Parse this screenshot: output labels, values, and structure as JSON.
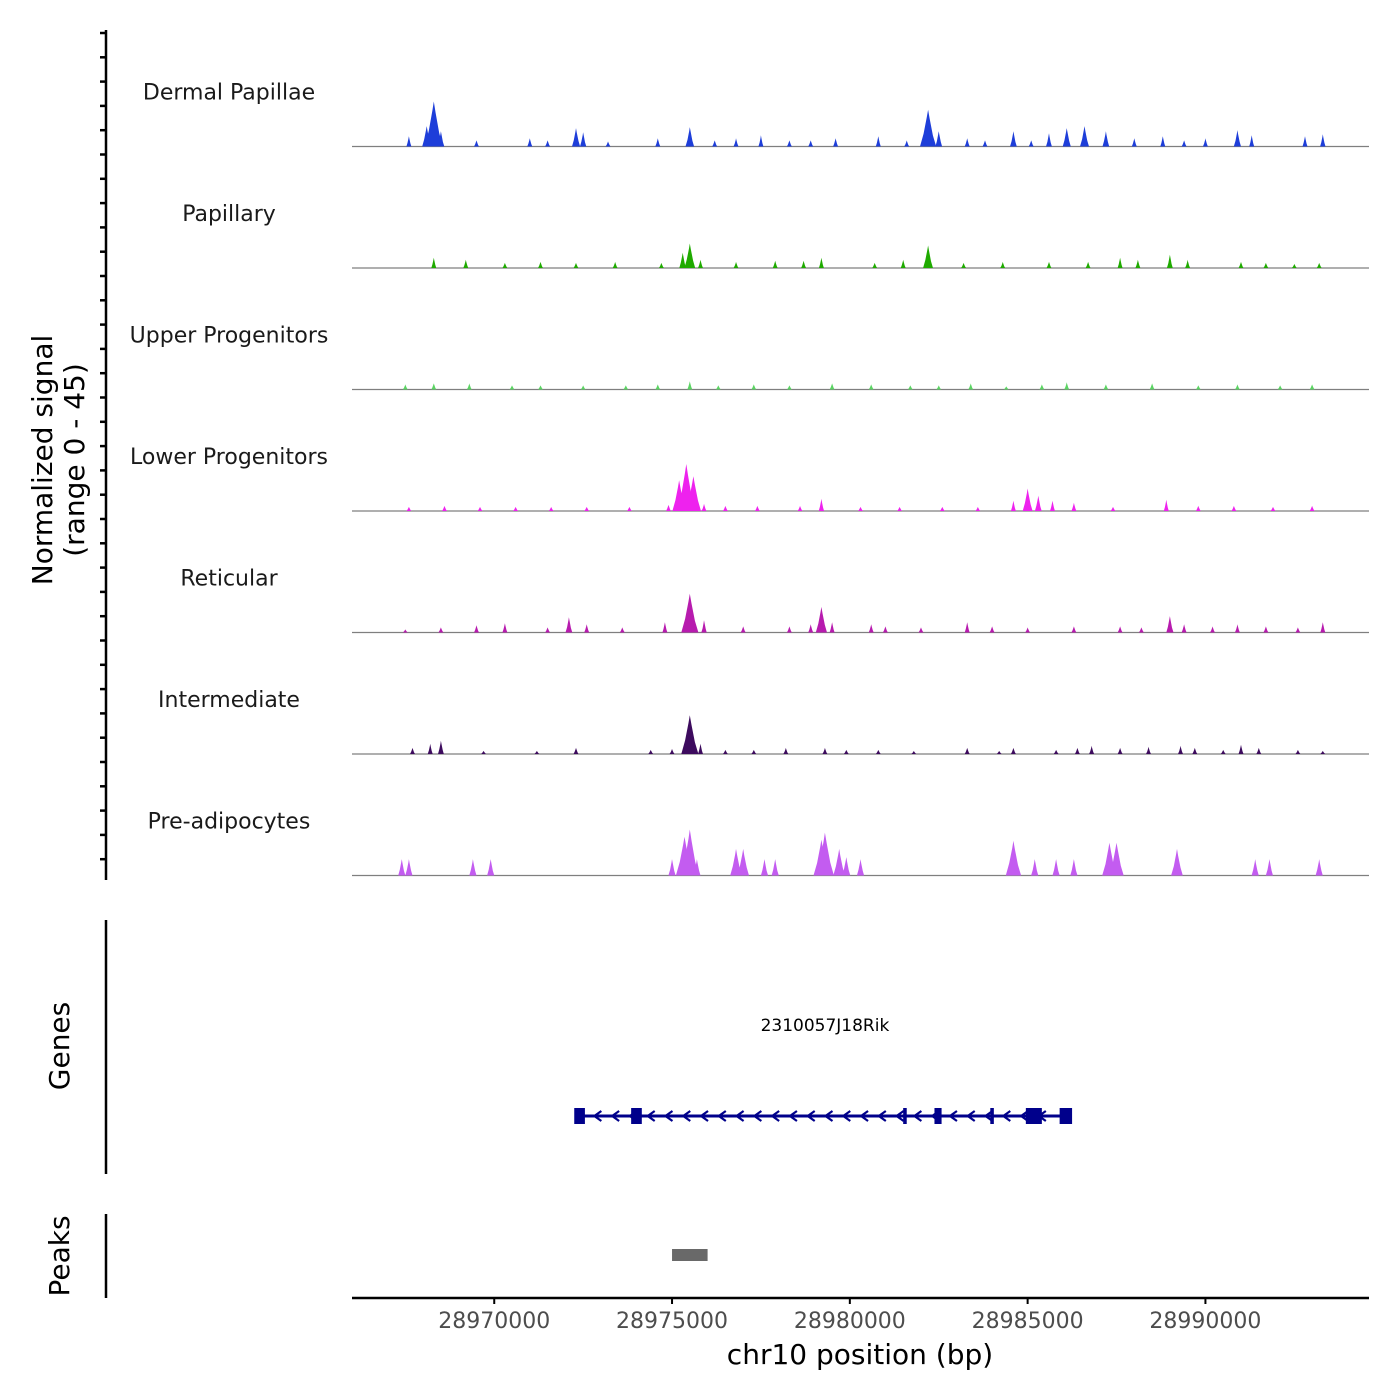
{
  "chart_data": {
    "type": "area",
    "title": "",
    "ylabel_line1": "Normalized signal",
    "ylabel_line2": "(range 0 - 45)",
    "y_range": [
      0,
      45
    ],
    "xlabel": "chr10 position (bp)",
    "x_range": [
      28966000,
      28994600
    ],
    "x_ticks": [
      {
        "value": 28970000,
        "label": "28970000"
      },
      {
        "value": 28975000,
        "label": "28975000"
      },
      {
        "value": 28980000,
        "label": "28980000"
      },
      {
        "value": 28985000,
        "label": "28985000"
      },
      {
        "value": 28990000,
        "label": "28990000"
      }
    ],
    "tracks": [
      {
        "name": "Dermal Papillae",
        "color": "#1E3ED9",
        "peaks": [
          [
            28967600,
            10
          ],
          [
            28968100,
            20
          ],
          [
            28968300,
            44
          ],
          [
            28968500,
            15
          ],
          [
            28969500,
            6
          ],
          [
            28971000,
            8
          ],
          [
            28971500,
            6
          ],
          [
            28972300,
            18
          ],
          [
            28972500,
            14
          ],
          [
            28973200,
            5
          ],
          [
            28974600,
            8
          ],
          [
            28975500,
            19
          ],
          [
            28976200,
            6
          ],
          [
            28976800,
            8
          ],
          [
            28977500,
            11
          ],
          [
            28978300,
            6
          ],
          [
            28978900,
            6
          ],
          [
            28979600,
            8
          ],
          [
            28980800,
            10
          ],
          [
            28981600,
            6
          ],
          [
            28982200,
            36
          ],
          [
            28982500,
            15
          ],
          [
            28983300,
            8
          ],
          [
            28983800,
            6
          ],
          [
            28984600,
            15
          ],
          [
            28985100,
            6
          ],
          [
            28985600,
            13
          ],
          [
            28986100,
            18
          ],
          [
            28986600,
            20
          ],
          [
            28987200,
            15
          ],
          [
            28988000,
            8
          ],
          [
            28988800,
            10
          ],
          [
            28989400,
            6
          ],
          [
            28990000,
            8
          ],
          [
            28990900,
            16
          ],
          [
            28991300,
            11
          ],
          [
            28992800,
            10
          ],
          [
            28993300,
            12
          ]
        ]
      },
      {
        "name": "Papillary",
        "color": "#1FAA00",
        "peaks": [
          [
            28968300,
            10
          ],
          [
            28969200,
            8
          ],
          [
            28970300,
            5
          ],
          [
            28971300,
            6
          ],
          [
            28972300,
            5
          ],
          [
            28973400,
            6
          ],
          [
            28974700,
            5
          ],
          [
            28975300,
            15
          ],
          [
            28975500,
            24
          ],
          [
            28975800,
            8
          ],
          [
            28976800,
            6
          ],
          [
            28977900,
            7
          ],
          [
            28978700,
            7
          ],
          [
            28979200,
            10
          ],
          [
            28980700,
            5
          ],
          [
            28981500,
            8
          ],
          [
            28982200,
            22
          ],
          [
            28983200,
            5
          ],
          [
            28984300,
            6
          ],
          [
            28985600,
            6
          ],
          [
            28986700,
            6
          ],
          [
            28987600,
            10
          ],
          [
            28988100,
            8
          ],
          [
            28989000,
            13
          ],
          [
            28989500,
            8
          ],
          [
            28991000,
            6
          ],
          [
            28991700,
            5
          ],
          [
            28992500,
            4
          ],
          [
            28993200,
            5
          ]
        ]
      },
      {
        "name": "Upper Progenitors",
        "color": "#5BD463",
        "peaks": [
          [
            28967500,
            5
          ],
          [
            28968300,
            6
          ],
          [
            28969300,
            6
          ],
          [
            28970500,
            4
          ],
          [
            28971300,
            4
          ],
          [
            28972500,
            4
          ],
          [
            28973700,
            4
          ],
          [
            28974600,
            5
          ],
          [
            28975500,
            8
          ],
          [
            28976300,
            4
          ],
          [
            28977300,
            5
          ],
          [
            28978300,
            4
          ],
          [
            28979500,
            6
          ],
          [
            28980600,
            5
          ],
          [
            28981700,
            4
          ],
          [
            28982500,
            4
          ],
          [
            28983400,
            6
          ],
          [
            28984400,
            3
          ],
          [
            28985400,
            5
          ],
          [
            28986100,
            7
          ],
          [
            28987200,
            5
          ],
          [
            28988500,
            6
          ],
          [
            28989800,
            4
          ],
          [
            28990900,
            5
          ],
          [
            28992100,
            4
          ],
          [
            28993000,
            5
          ]
        ]
      },
      {
        "name": "Lower Progenitors",
        "color": "#EE22EE",
        "peaks": [
          [
            28967600,
            4
          ],
          [
            28968600,
            5
          ],
          [
            28969600,
            4
          ],
          [
            28970600,
            4
          ],
          [
            28971600,
            4
          ],
          [
            28972600,
            4
          ],
          [
            28973800,
            4
          ],
          [
            28974900,
            6
          ],
          [
            28975200,
            30
          ],
          [
            28975400,
            46
          ],
          [
            28975600,
            34
          ],
          [
            28975900,
            7
          ],
          [
            28976500,
            5
          ],
          [
            28977400,
            5
          ],
          [
            28978600,
            5
          ],
          [
            28979200,
            12
          ],
          [
            28980300,
            4
          ],
          [
            28981400,
            4
          ],
          [
            28982600,
            4
          ],
          [
            28983600,
            4
          ],
          [
            28984600,
            10
          ],
          [
            28985000,
            22
          ],
          [
            28985300,
            15
          ],
          [
            28985700,
            10
          ],
          [
            28986300,
            8
          ],
          [
            28987400,
            4
          ],
          [
            28988900,
            11
          ],
          [
            28989800,
            5
          ],
          [
            28990800,
            5
          ],
          [
            28991900,
            4
          ],
          [
            28993000,
            5
          ]
        ]
      },
      {
        "name": "Reticular",
        "color": "#B71BAE",
        "peaks": [
          [
            28967500,
            3
          ],
          [
            28968500,
            5
          ],
          [
            28969500,
            7
          ],
          [
            28970300,
            9
          ],
          [
            28971500,
            5
          ],
          [
            28972100,
            15
          ],
          [
            28972600,
            8
          ],
          [
            28973600,
            5
          ],
          [
            28974800,
            10
          ],
          [
            28975500,
            38
          ],
          [
            28975900,
            12
          ],
          [
            28977000,
            6
          ],
          [
            28978300,
            6
          ],
          [
            28978900,
            8
          ],
          [
            28979200,
            25
          ],
          [
            28979500,
            10
          ],
          [
            28980600,
            8
          ],
          [
            28981000,
            6
          ],
          [
            28982000,
            5
          ],
          [
            28983300,
            10
          ],
          [
            28984000,
            6
          ],
          [
            28985000,
            5
          ],
          [
            28986300,
            6
          ],
          [
            28987600,
            6
          ],
          [
            28988200,
            5
          ],
          [
            28989000,
            16
          ],
          [
            28989400,
            8
          ],
          [
            28990200,
            6
          ],
          [
            28990900,
            8
          ],
          [
            28991700,
            6
          ],
          [
            28992600,
            5
          ],
          [
            28993300,
            10
          ]
        ]
      },
      {
        "name": "Intermediate",
        "color": "#3D0B5E",
        "peaks": [
          [
            28967700,
            6
          ],
          [
            28968200,
            10
          ],
          [
            28968500,
            13
          ],
          [
            28969700,
            3
          ],
          [
            28971200,
            3
          ],
          [
            28972300,
            6
          ],
          [
            28974400,
            4
          ],
          [
            28975000,
            5
          ],
          [
            28975500,
            38
          ],
          [
            28975800,
            10
          ],
          [
            28976500,
            4
          ],
          [
            28977300,
            4
          ],
          [
            28978200,
            6
          ],
          [
            28979300,
            6
          ],
          [
            28979900,
            4
          ],
          [
            28980800,
            4
          ],
          [
            28981800,
            3
          ],
          [
            28983300,
            6
          ],
          [
            28984200,
            3
          ],
          [
            28984600,
            6
          ],
          [
            28985800,
            4
          ],
          [
            28986400,
            6
          ],
          [
            28986800,
            8
          ],
          [
            28987600,
            6
          ],
          [
            28988400,
            7
          ],
          [
            28989300,
            8
          ],
          [
            28989700,
            6
          ],
          [
            28990500,
            4
          ],
          [
            28991000,
            9
          ],
          [
            28991500,
            6
          ],
          [
            28992600,
            4
          ],
          [
            28993300,
            3
          ]
        ]
      },
      {
        "name": "Pre-adipocytes",
        "color": "#C35CF0",
        "peaks": [
          [
            28967400,
            16
          ],
          [
            28967600,
            16
          ],
          [
            28969400,
            16
          ],
          [
            28969900,
            16
          ],
          [
            28975000,
            16
          ],
          [
            28975350,
            38
          ],
          [
            28975500,
            45
          ],
          [
            28975700,
            16
          ],
          [
            28976800,
            26
          ],
          [
            28977000,
            26
          ],
          [
            28977600,
            16
          ],
          [
            28977900,
            16
          ],
          [
            28979200,
            35
          ],
          [
            28979300,
            42
          ],
          [
            28979700,
            26
          ],
          [
            28979900,
            18
          ],
          [
            28980300,
            16
          ],
          [
            28984600,
            34
          ],
          [
            28985200,
            16
          ],
          [
            28985800,
            16
          ],
          [
            28986300,
            16
          ],
          [
            28987300,
            32
          ],
          [
            28987500,
            32
          ],
          [
            28989200,
            26
          ],
          [
            28991400,
            16
          ],
          [
            28991800,
            16
          ],
          [
            28993200,
            16
          ]
        ]
      }
    ],
    "genes_label": "Genes",
    "gene": {
      "name": "2310057J18Rik",
      "start": 28972400,
      "end": 28986200,
      "strand": "-",
      "color": "#00008B",
      "exons": [
        [
          28972250,
          28972550
        ],
        [
          28973850,
          28974150
        ],
        [
          28981500,
          28981600
        ],
        [
          28982380,
          28982580
        ],
        [
          28983950,
          28984050
        ],
        [
          28984950,
          28985400
        ],
        [
          28985900,
          28986250
        ]
      ]
    },
    "peaks_label": "Peaks",
    "peak_regions": [
      [
        28975000,
        28976000
      ]
    ]
  }
}
